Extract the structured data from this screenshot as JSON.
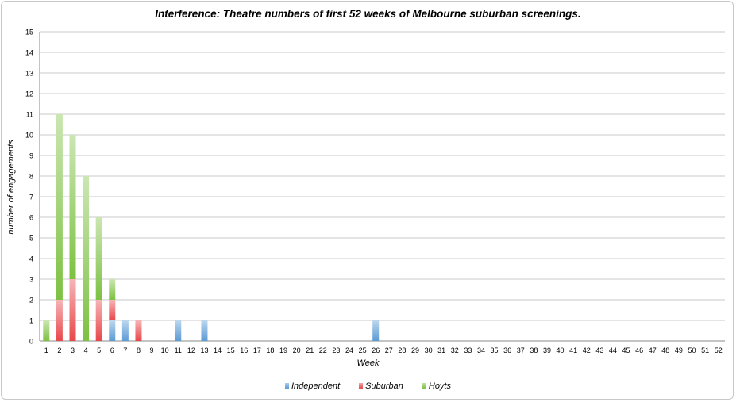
{
  "chart_data": {
    "type": "bar",
    "stacked": true,
    "title": "Interference: Theatre numbers of first 52 weeks of Melbourne suburban screenings.",
    "xlabel": "Week",
    "ylabel": "number of engagements",
    "ylim": [
      0,
      15
    ],
    "yticks": [
      "0",
      "1",
      "2",
      "3",
      "4",
      "5",
      "6",
      "7",
      "8",
      "9",
      "10",
      "11",
      "12",
      "13",
      "14",
      "15"
    ],
    "grid": true,
    "legend_position": "bottom",
    "categories": [
      "1",
      "2",
      "3",
      "4",
      "5",
      "6",
      "7",
      "8",
      "9",
      "10",
      "11",
      "12",
      "13",
      "14",
      "15",
      "16",
      "17",
      "18",
      "19",
      "20",
      "21",
      "22",
      "23",
      "24",
      "25",
      "26",
      "27",
      "28",
      "29",
      "30",
      "31",
      "32",
      "33",
      "34",
      "35",
      "36",
      "37",
      "38",
      "39",
      "40",
      "41",
      "42",
      "43",
      "44",
      "45",
      "46",
      "47",
      "48",
      "49",
      "50",
      "51",
      "52"
    ],
    "series": [
      {
        "name": "Independent",
        "color": "#5b9bd5",
        "values": [
          0,
          0,
          0,
          0,
          0,
          1,
          1,
          0,
          0,
          0,
          1,
          0,
          1,
          0,
          0,
          0,
          0,
          0,
          0,
          0,
          0,
          0,
          0,
          0,
          0,
          1,
          0,
          0,
          0,
          0,
          0,
          0,
          0,
          0,
          0,
          0,
          0,
          0,
          0,
          0,
          0,
          0,
          0,
          0,
          0,
          0,
          0,
          0,
          0,
          0,
          0,
          0
        ]
      },
      {
        "name": "Suburban",
        "color": "#e8474a",
        "values": [
          0,
          2,
          3,
          0,
          2,
          1,
          0,
          1,
          0,
          0,
          0,
          0,
          0,
          0,
          0,
          0,
          0,
          0,
          0,
          0,
          0,
          0,
          0,
          0,
          0,
          0,
          0,
          0,
          0,
          0,
          0,
          0,
          0,
          0,
          0,
          0,
          0,
          0,
          0,
          0,
          0,
          0,
          0,
          0,
          0,
          0,
          0,
          0,
          0,
          0,
          0,
          0
        ]
      },
      {
        "name": "Hoyts",
        "color": "#7dc142",
        "values": [
          1,
          9,
          7,
          8,
          4,
          1,
          0,
          0,
          0,
          0,
          0,
          0,
          0,
          0,
          0,
          0,
          0,
          0,
          0,
          0,
          0,
          0,
          0,
          0,
          0,
          0,
          0,
          0,
          0,
          0,
          0,
          0,
          0,
          0,
          0,
          0,
          0,
          0,
          0,
          0,
          0,
          0,
          0,
          0,
          0,
          0,
          0,
          0,
          0,
          0,
          0,
          0
        ]
      }
    ]
  }
}
